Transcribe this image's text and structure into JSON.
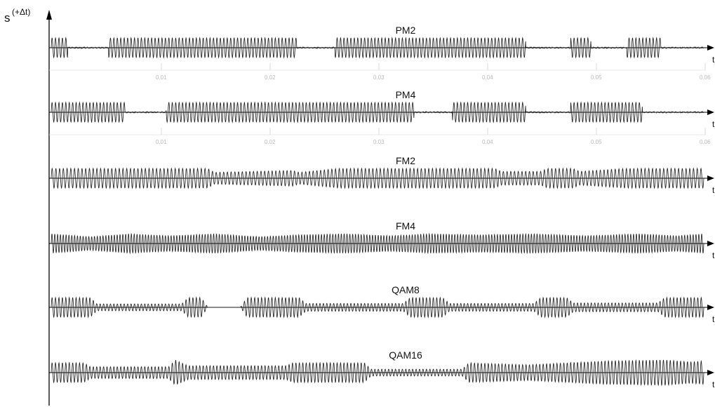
{
  "chart_data": {
    "type": "line",
    "ylabel": "s",
    "ylabel_sup": "(+Δt)",
    "xlabel": "t",
    "x_ticks": [
      "0.01",
      "0.02",
      "0.03",
      "0.04",
      "0.05",
      "0.06"
    ],
    "panels": [
      {
        "name": "PM2",
        "segments": [
          [
            0.0,
            0.025
          ],
          [
            0.088,
            0.376
          ],
          [
            0.435,
            0.727
          ],
          [
            0.796,
            0.827
          ],
          [
            0.882,
            0.934
          ]
        ],
        "amplitudes": [
          [
            0.0,
            1.0
          ],
          [
            1.0,
            1.0
          ]
        ],
        "carrier_cycles": 190
      },
      {
        "name": "PM4",
        "segments": [
          [
            0.0,
            0.113
          ],
          [
            0.176,
            0.556
          ],
          [
            0.615,
            0.727
          ],
          [
            0.796,
            0.906
          ]
        ],
        "amplitudes": [
          [
            0.0,
            1.0
          ],
          [
            1.0,
            1.0
          ]
        ],
        "carrier_cycles": 190
      },
      {
        "name": "FM2",
        "segments": [
          [
            0.0,
            1.0
          ]
        ],
        "amplitudes": [
          [
            0.0,
            1.0
          ],
          [
            0.24,
            1.0
          ],
          [
            0.25,
            0.6
          ],
          [
            0.37,
            0.8
          ],
          [
            0.38,
            0.6
          ],
          [
            0.44,
            1.0
          ],
          [
            0.68,
            1.0
          ],
          [
            0.69,
            0.7
          ],
          [
            0.75,
            0.7
          ],
          [
            0.76,
            1.0
          ],
          [
            0.8,
            1.0
          ],
          [
            0.81,
            0.7
          ],
          [
            0.88,
            1.0
          ],
          [
            1.0,
            1.0
          ]
        ],
        "carrier_cycles": 175
      },
      {
        "name": "FM4",
        "segments": [
          [
            0.0,
            1.0
          ]
        ],
        "amplitudes": [
          [
            0.0,
            1.0
          ],
          [
            0.06,
            0.7
          ],
          [
            0.12,
            1.0
          ],
          [
            0.18,
            0.8
          ],
          [
            0.25,
            1.0
          ],
          [
            0.32,
            0.7
          ],
          [
            0.38,
            0.9
          ],
          [
            0.45,
            1.0
          ],
          [
            0.52,
            0.8
          ],
          [
            0.58,
            1.0
          ],
          [
            0.66,
            0.9
          ],
          [
            0.74,
            1.0
          ],
          [
            0.82,
            0.8
          ],
          [
            0.9,
            1.0
          ],
          [
            0.96,
            0.8
          ],
          [
            1.0,
            1.0
          ]
        ],
        "carrier_cycles": 230
      },
      {
        "name": "QAM8",
        "segments": [
          [
            0.0,
            1.0
          ]
        ],
        "amplitudes": [
          [
            0.0,
            1.0
          ],
          [
            0.06,
            1.0
          ],
          [
            0.07,
            0.35
          ],
          [
            0.2,
            0.35
          ],
          [
            0.21,
            1.0
          ],
          [
            0.23,
            1.0
          ],
          [
            0.24,
            0.0
          ],
          [
            0.29,
            0.0
          ],
          [
            0.3,
            1.0
          ],
          [
            0.38,
            1.0
          ],
          [
            0.39,
            0.4
          ],
          [
            0.54,
            0.4
          ],
          [
            0.55,
            1.0
          ],
          [
            0.6,
            1.0
          ],
          [
            0.61,
            0.4
          ],
          [
            0.74,
            0.4
          ],
          [
            0.75,
            1.0
          ],
          [
            0.79,
            1.0
          ],
          [
            0.8,
            0.45
          ],
          [
            0.93,
            0.45
          ],
          [
            0.94,
            1.0
          ],
          [
            1.0,
            1.0
          ]
        ],
        "carrier_cycles": 190
      },
      {
        "name": "QAM16",
        "segments": [
          [
            0.0,
            1.0
          ]
        ],
        "amplitudes": [
          [
            0.0,
            1.0
          ],
          [
            0.05,
            1.0
          ],
          [
            0.06,
            0.6
          ],
          [
            0.18,
            0.6
          ],
          [
            0.19,
            1.3
          ],
          [
            0.21,
            0.7
          ],
          [
            0.36,
            0.7
          ],
          [
            0.37,
            1.0
          ],
          [
            0.48,
            1.0
          ],
          [
            0.49,
            0.35
          ],
          [
            0.63,
            0.35
          ],
          [
            0.64,
            1.0
          ],
          [
            0.73,
            0.8
          ],
          [
            0.85,
            1.2
          ],
          [
            0.94,
            1.3
          ],
          [
            0.98,
            1.1
          ],
          [
            1.0,
            1.2
          ]
        ],
        "carrier_cycles": 190
      }
    ]
  }
}
